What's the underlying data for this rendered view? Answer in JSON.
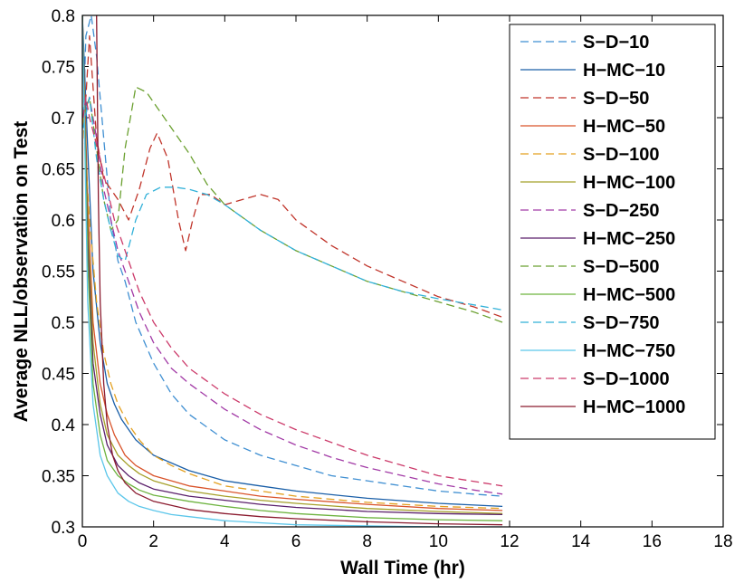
{
  "chart_data": {
    "type": "line",
    "title": "",
    "xlabel": "Wall Time (hr)",
    "ylabel": "Average NLL/observation on Test",
    "xlim": [
      0,
      18
    ],
    "ylim": [
      0.3,
      0.8
    ],
    "xticks": [
      "0",
      "2",
      "4",
      "6",
      "8",
      "10",
      "12",
      "14",
      "16",
      "18"
    ],
    "yticks": [
      "0.3",
      "0.35",
      "0.4",
      "0.45",
      "0.5",
      "0.55",
      "0.6",
      "0.65",
      "0.7",
      "0.75",
      "0.8"
    ],
    "grid": false,
    "legend_position": "top-right",
    "series": [
      {
        "name": "S−D−10",
        "color": "#3f8fd2",
        "dashed": true,
        "x": [
          0.02,
          0.1,
          0.25,
          0.4,
          0.6,
          0.8,
          1,
          1.2,
          1.5,
          2,
          2.5,
          3,
          4,
          5,
          6,
          7,
          8,
          9,
          10,
          11,
          11.8
        ],
        "y": [
          0.69,
          0.78,
          0.8,
          0.76,
          0.68,
          0.6,
          0.56,
          0.54,
          0.5,
          0.46,
          0.43,
          0.41,
          0.385,
          0.37,
          0.36,
          0.35,
          0.345,
          0.34,
          0.335,
          0.332,
          0.33
        ]
      },
      {
        "name": "H−MC−10",
        "color": "#1a5fa8",
        "dashed": false,
        "x": [
          0,
          0.15,
          0.3,
          0.5,
          0.7,
          0.9,
          1.1,
          1.5,
          2,
          3,
          4,
          5,
          6,
          8,
          10,
          11.8
        ],
        "y": [
          0.8,
          0.67,
          0.55,
          0.48,
          0.44,
          0.42,
          0.405,
          0.385,
          0.37,
          0.355,
          0.345,
          0.34,
          0.335,
          0.328,
          0.323,
          0.32
        ]
      },
      {
        "name": "S−D−50",
        "color": "#c0342a",
        "dashed": true,
        "x": [
          0.02,
          0.1,
          0.2,
          0.4,
          0.6,
          0.8,
          1,
          1.3,
          1.6,
          1.9,
          2.1,
          2.4,
          2.7,
          2.9,
          3.1,
          3.3,
          3.6,
          4,
          4.5,
          5,
          5.5,
          6,
          7,
          8,
          9,
          10,
          11,
          11.8
        ],
        "y": [
          0.69,
          0.72,
          0.78,
          0.68,
          0.64,
          0.63,
          0.62,
          0.6,
          0.63,
          0.67,
          0.685,
          0.66,
          0.6,
          0.57,
          0.6,
          0.625,
          0.625,
          0.615,
          0.62,
          0.625,
          0.62,
          0.6,
          0.575,
          0.555,
          0.54,
          0.525,
          0.515,
          0.505
        ]
      },
      {
        "name": "H−MC−50",
        "color": "#d9532a",
        "dashed": false,
        "x": [
          0,
          0.15,
          0.3,
          0.5,
          0.7,
          0.9,
          1.2,
          1.5,
          2,
          3,
          4,
          5,
          6,
          8,
          10,
          11.8
        ],
        "y": [
          0.8,
          0.62,
          0.5,
          0.44,
          0.41,
          0.39,
          0.37,
          0.36,
          0.35,
          0.34,
          0.335,
          0.33,
          0.327,
          0.322,
          0.318,
          0.316
        ]
      },
      {
        "name": "S−D−100",
        "color": "#e3a020",
        "dashed": true,
        "x": [
          0.02,
          0.2,
          0.4,
          0.6,
          0.8,
          1,
          1.3,
          1.6,
          2,
          2.5,
          3,
          4,
          5,
          6,
          8,
          10,
          11.8
        ],
        "y": [
          0.7,
          0.6,
          0.52,
          0.47,
          0.44,
          0.42,
          0.4,
          0.385,
          0.37,
          0.36,
          0.352,
          0.34,
          0.335,
          0.33,
          0.324,
          0.32,
          0.318
        ]
      },
      {
        "name": "H−MC−100",
        "color": "#a5a02a",
        "dashed": false,
        "x": [
          0,
          0.15,
          0.3,
          0.5,
          0.7,
          1,
          1.3,
          1.6,
          2,
          3,
          4,
          5,
          6,
          8,
          10,
          11.8
        ],
        "y": [
          0.8,
          0.6,
          0.48,
          0.42,
          0.39,
          0.37,
          0.36,
          0.352,
          0.345,
          0.335,
          0.33,
          0.326,
          0.323,
          0.318,
          0.315,
          0.313
        ]
      },
      {
        "name": "S−D−250",
        "color": "#a23aa6",
        "dashed": true,
        "x": [
          0.02,
          0.2,
          0.4,
          0.6,
          0.8,
          1,
          1.3,
          1.6,
          2,
          2.5,
          3,
          4,
          5,
          6,
          7,
          8,
          9,
          10,
          11,
          11.8
        ],
        "y": [
          0.69,
          0.72,
          0.68,
          0.63,
          0.6,
          0.57,
          0.54,
          0.51,
          0.48,
          0.455,
          0.44,
          0.415,
          0.395,
          0.38,
          0.368,
          0.358,
          0.35,
          0.342,
          0.336,
          0.332
        ]
      },
      {
        "name": "H−MC−250",
        "color": "#5a1f6b",
        "dashed": false,
        "x": [
          0,
          0.15,
          0.3,
          0.5,
          0.7,
          1,
          1.3,
          1.6,
          2,
          3,
          4,
          5,
          6,
          8,
          10,
          11.8
        ],
        "y": [
          0.8,
          0.58,
          0.46,
          0.41,
          0.38,
          0.36,
          0.35,
          0.343,
          0.337,
          0.33,
          0.326,
          0.322,
          0.319,
          0.315,
          0.313,
          0.312
        ]
      },
      {
        "name": "S−D−500",
        "color": "#6ba030",
        "dashed": true,
        "x": [
          0.02,
          0.2,
          0.4,
          0.6,
          0.8,
          1,
          1.2,
          1.5,
          1.8,
          2.1,
          2.5,
          3,
          3.5,
          4,
          5,
          6,
          7,
          8,
          9,
          10,
          11,
          11.8
        ],
        "y": [
          0.7,
          0.72,
          0.67,
          0.62,
          0.59,
          0.6,
          0.67,
          0.73,
          0.725,
          0.71,
          0.69,
          0.665,
          0.635,
          0.615,
          0.59,
          0.57,
          0.555,
          0.54,
          0.53,
          0.52,
          0.51,
          0.5
        ]
      },
      {
        "name": "H−MC−500",
        "color": "#6db33f",
        "dashed": false,
        "x": [
          0,
          0.15,
          0.3,
          0.5,
          0.7,
          1,
          1.3,
          1.6,
          2,
          3,
          4,
          5,
          6,
          8,
          10,
          11.8
        ],
        "y": [
          0.8,
          0.56,
          0.44,
          0.39,
          0.365,
          0.35,
          0.342,
          0.336,
          0.331,
          0.325,
          0.32,
          0.316,
          0.313,
          0.309,
          0.307,
          0.306
        ]
      },
      {
        "name": "S−D−750",
        "color": "#30b0d8",
        "dashed": true,
        "x": [
          0.02,
          0.2,
          0.4,
          0.6,
          0.8,
          1,
          1.2,
          1.5,
          1.8,
          2.2,
          2.6,
          3,
          3.5,
          4,
          5,
          6,
          7,
          8,
          9,
          10,
          11,
          11.8
        ],
        "y": [
          0.69,
          0.72,
          0.66,
          0.62,
          0.59,
          0.565,
          0.56,
          0.6,
          0.625,
          0.632,
          0.632,
          0.63,
          0.625,
          0.615,
          0.59,
          0.57,
          0.555,
          0.54,
          0.53,
          0.523,
          0.517,
          0.512
        ]
      },
      {
        "name": "H−MC−750",
        "color": "#5bc6ea",
        "dashed": false,
        "x": [
          0,
          0.15,
          0.3,
          0.5,
          0.7,
          1,
          1.3,
          1.6,
          2,
          2.5,
          3,
          4,
          5,
          6,
          8,
          10,
          11.8
        ],
        "y": [
          0.8,
          0.52,
          0.42,
          0.37,
          0.35,
          0.333,
          0.325,
          0.32,
          0.316,
          0.312,
          0.31,
          0.306,
          0.304,
          0.302,
          0.301,
          0.3,
          0.3
        ]
      },
      {
        "name": "S−D−1000",
        "color": "#cc3a6a",
        "dashed": true,
        "x": [
          0.02,
          0.1,
          0.2,
          0.35,
          0.5,
          0.7,
          0.9,
          1.1,
          1.3,
          1.6,
          2,
          2.5,
          3,
          4,
          5,
          6,
          8,
          10,
          11.8
        ],
        "y": [
          0.7,
          0.72,
          0.7,
          0.68,
          0.66,
          0.63,
          0.6,
          0.58,
          0.56,
          0.53,
          0.5,
          0.475,
          0.455,
          0.43,
          0.41,
          0.395,
          0.37,
          0.35,
          0.34
        ]
      },
      {
        "name": "H−MC−1000",
        "color": "#8a1a2e",
        "dashed": false,
        "x": [
          0.4,
          0.45,
          0.5,
          0.6,
          0.7,
          0.85,
          1,
          1.2,
          1.5,
          2,
          3,
          4,
          5,
          6,
          8,
          10,
          11.8
        ],
        "y": [
          0.8,
          0.62,
          0.52,
          0.44,
          0.4,
          0.37,
          0.355,
          0.343,
          0.333,
          0.325,
          0.317,
          0.313,
          0.31,
          0.308,
          0.305,
          0.303,
          0.302
        ]
      }
    ]
  }
}
